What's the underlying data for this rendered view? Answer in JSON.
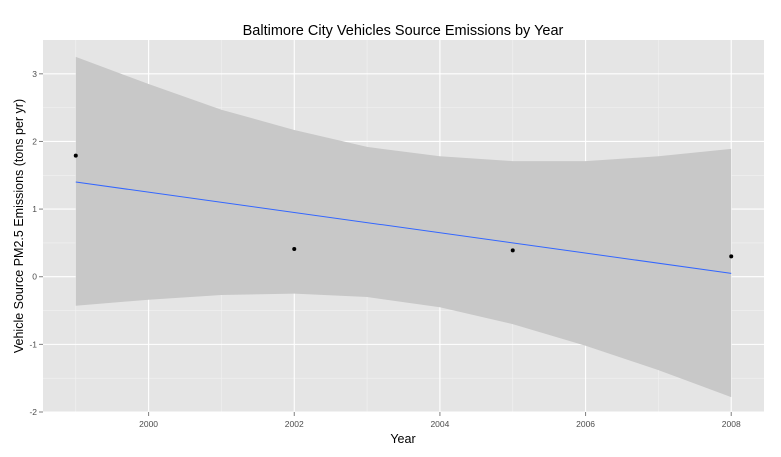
{
  "chart_data": {
    "type": "scatter",
    "title": "Baltimore City Vehicles Source Emissions by Year",
    "xlabel": "Year",
    "ylabel": "Vehicle Source PM2.5 Emissions (tons per yr)",
    "xlim": [
      1998.55,
      2008.45
    ],
    "ylim": [
      -2.0,
      3.5
    ],
    "x_ticks": [
      "2000",
      "2002",
      "2004",
      "2006",
      "2008"
    ],
    "y_ticks": [
      "-2",
      "-1",
      "0",
      "1",
      "2",
      "3"
    ],
    "grid": true,
    "legend": "none",
    "points": [
      {
        "x": 1999,
        "y": 1.79
      },
      {
        "x": 2002,
        "y": 0.41
      },
      {
        "x": 2005,
        "y": 0.39
      },
      {
        "x": 2008,
        "y": 0.3
      }
    ],
    "fit_line": {
      "method": "linear regression",
      "x": [
        1999,
        2008
      ],
      "y": [
        1.4,
        0.05
      ]
    },
    "confidence_band": {
      "x": [
        1999,
        2000,
        2001,
        2002,
        2003,
        2004,
        2005,
        2006,
        2007,
        2008
      ],
      "lower": [
        -0.43,
        -0.34,
        -0.27,
        -0.25,
        -0.3,
        -0.45,
        -0.7,
        -1.02,
        -1.38,
        -1.78
      ],
      "upper": [
        3.25,
        2.85,
        2.47,
        2.17,
        1.92,
        1.78,
        1.71,
        1.71,
        1.78,
        1.89
      ]
    },
    "colors": {
      "panel": "#e5e5e5",
      "grid_major": "#ffffff",
      "grid_minor": "#f2f2f2",
      "band": "#c8c8c8",
      "line": "#3366ff",
      "point": "#000000"
    }
  }
}
